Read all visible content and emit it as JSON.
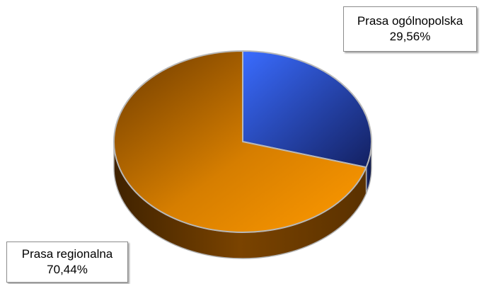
{
  "chart_data": {
    "type": "pie",
    "style": "3d",
    "categories": [
      "Prasa ogólnopolska",
      "Prasa regionalna"
    ],
    "values": [
      29.56,
      70.44
    ],
    "value_labels": [
      "29,56%",
      "70,44%"
    ],
    "colors": [
      "#3366ff",
      "#ff9900"
    ],
    "title": "",
    "legend": "none"
  }
}
